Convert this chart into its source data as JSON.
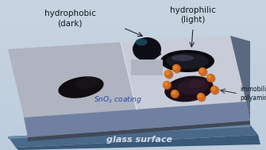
{
  "bg_top_color": "#c8d4dc",
  "bg_bottom_color": "#b8c8d4",
  "slab_top_left_color": "#b0b4c0",
  "slab_top_right_color": "#c8ccd8",
  "slab_front_color": "#7080a0",
  "slab_right_color": "#5a6880",
  "slab_edge_color": "#404858",
  "glass_top_color": "#4a6888",
  "glass_front_color": "#3a5878",
  "glass_text_color": "#d0dce8",
  "divider_color": "#d0d4e0",
  "labels": {
    "hydrophobic": "hydrophobic\n(dark)",
    "hydrophilic": "hydrophilic\n(light)",
    "sno2": "SnO$_2$ coating",
    "glass": "glass surface",
    "polyamines": "immobilized\npolyamines"
  },
  "label_color": "#101820",
  "arrow_color": "#202830",
  "drop_color": "#0d0d15",
  "drop_highlight": "#1a4a5a",
  "drop_base": "#080810",
  "blob_left_color": "#100c10",
  "blob_left_light": "#201820",
  "spread_color": "#151518",
  "spread_ring": "#282830",
  "bact_color": "#1a0f18",
  "bact_light": "#2a1f28",
  "dot_orange": "#d06818",
  "dot_highlight": "#e88830",
  "dot_shadow": "#a04010",
  "sno2_color": "#2244aa"
}
